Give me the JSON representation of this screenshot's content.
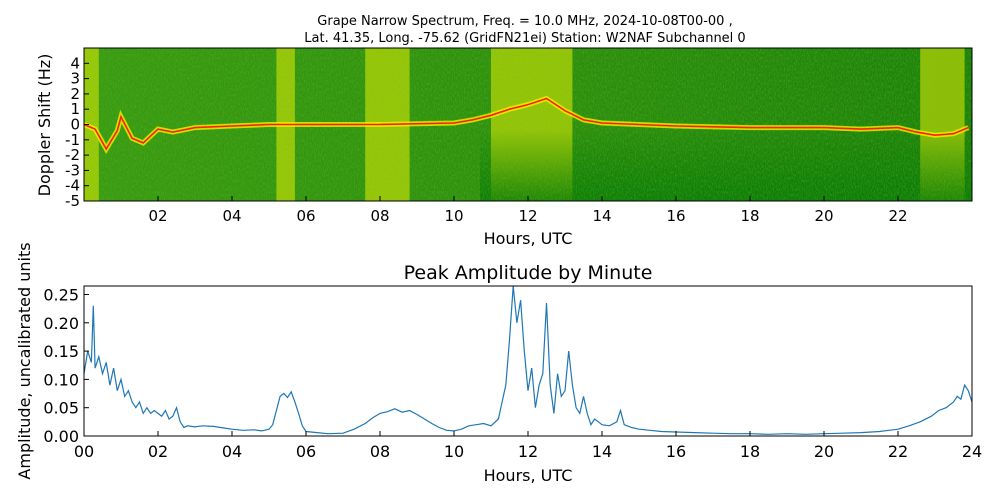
{
  "figure": {
    "spectrogram_title_line1": "Grape Narrow Spectrum, Freq. = 10.0 MHz, 2024-10-08T00-00 ,",
    "spectrogram_title_line2": "Lat.  41.35, Long. -75.62 (GridFN21ei) Station: W2NAF Subchannel 0"
  },
  "chart_data": [
    {
      "type": "heatmap",
      "title": "Grape Narrow Spectrum, Freq. = 10.0 MHz, 2024-10-08T00-00 , Lat.  41.35, Long. -75.62 (GridFN21ei) Station: W2NAF Subchannel 0",
      "xlabel": "Hours, UTC",
      "ylabel": "Doppler Shift (Hz)",
      "xlim": [
        0,
        24
      ],
      "ylim": [
        -5,
        5
      ],
      "x_ticks": [
        2,
        4,
        6,
        8,
        10,
        12,
        14,
        16,
        18,
        20,
        22
      ],
      "x_tick_labels": [
        "02",
        "04",
        "06",
        "08",
        "10",
        "12",
        "14",
        "16",
        "18",
        "20",
        "22"
      ],
      "y_ticks": [
        4,
        3,
        2,
        1,
        0,
        -1,
        -2,
        -3,
        -4,
        -5
      ],
      "y_tick_labels": [
        "4",
        "3",
        "2",
        "1",
        "0",
        "-1",
        "-2",
        "-3",
        "-4",
        "-5"
      ],
      "colors": {
        "background": "#0a7a05",
        "mid": "#9ccf12",
        "high": "#f0f000",
        "peak": "#ff2000"
      },
      "bright_bands_hours": [
        [
          0.0,
          0.4
        ],
        [
          5.2,
          5.7
        ],
        [
          7.6,
          8.8
        ],
        [
          11.0,
          13.2
        ],
        [
          22.6,
          23.8
        ]
      ],
      "trace": {
        "hours": [
          0,
          0.3,
          0.6,
          0.9,
          1.0,
          1.3,
          1.6,
          2.0,
          2.4,
          3.0,
          4.0,
          5.0,
          6.0,
          8.0,
          10.0,
          10.5,
          11.0,
          11.5,
          12.0,
          12.5,
          13.0,
          13.5,
          14.0,
          15.0,
          16.0,
          18.0,
          20.0,
          21.0,
          22.0,
          22.5,
          23.0,
          23.5,
          23.9
        ],
        "doppler_hz": [
          0,
          -0.3,
          -1.6,
          -0.4,
          0.5,
          -0.9,
          -1.2,
          -0.3,
          -0.5,
          -0.2,
          -0.1,
          0,
          0,
          0,
          0.1,
          0.3,
          0.6,
          1.0,
          1.3,
          1.7,
          0.9,
          0.3,
          0.1,
          0,
          -0.1,
          -0.2,
          -0.2,
          -0.3,
          -0.2,
          -0.5,
          -0.7,
          -0.6,
          -0.2
        ]
      }
    },
    {
      "type": "line",
      "title": "Peak Amplitude by Minute",
      "xlabel": "Hours, UTC",
      "ylabel": "Amplitude, uncalibrated units",
      "xlim": [
        0,
        24
      ],
      "ylim": [
        0,
        0.265
      ],
      "x_ticks": [
        0,
        2,
        4,
        6,
        8,
        10,
        12,
        14,
        16,
        18,
        20,
        22,
        24
      ],
      "x_tick_labels": [
        "00",
        "02",
        "04",
        "06",
        "08",
        "10",
        "12",
        "14",
        "16",
        "18",
        "20",
        "22",
        "24"
      ],
      "y_ticks": [
        0,
        0.05,
        0.1,
        0.15,
        0.2,
        0.25
      ],
      "y_tick_labels": [
        "0.00",
        "0.05",
        "0.10",
        "0.15",
        "0.20",
        "0.25"
      ],
      "color": "#1f77b4",
      "series": [
        {
          "x": [
            0,
            0.1,
            0.2,
            0.25,
            0.3,
            0.4,
            0.5,
            0.6,
            0.7,
            0.8,
            0.9,
            1.0,
            1.1,
            1.2,
            1.3,
            1.4,
            1.5,
            1.6,
            1.7,
            1.8,
            1.9,
            2.0,
            2.1,
            2.2,
            2.3,
            2.4,
            2.5,
            2.6,
            2.7,
            2.8,
            3.0,
            3.2,
            3.5,
            3.8,
            4.0,
            4.3,
            4.6,
            4.8,
            5.0,
            5.1,
            5.2,
            5.3,
            5.4,
            5.5,
            5.6,
            5.7,
            5.8,
            5.9,
            6.0,
            6.3,
            6.6,
            7.0,
            7.3,
            7.6,
            7.8,
            8.0,
            8.2,
            8.4,
            8.6,
            8.8,
            9.0,
            9.2,
            9.4,
            9.6,
            9.8,
            10.0,
            10.2,
            10.4,
            10.6,
            10.8,
            11.0,
            11.2,
            11.3,
            11.4,
            11.5,
            11.6,
            11.7,
            11.8,
            11.9,
            12.0,
            12.1,
            12.2,
            12.3,
            12.4,
            12.5,
            12.6,
            12.7,
            12.8,
            12.9,
            13.0,
            13.1,
            13.2,
            13.3,
            13.4,
            13.5,
            13.6,
            13.7,
            13.8,
            13.9,
            14.0,
            14.2,
            14.4,
            14.5,
            14.6,
            14.8,
            15.0,
            15.3,
            15.6,
            16.0,
            16.5,
            17.0,
            17.5,
            18.0,
            18.5,
            19.0,
            19.5,
            20.0,
            20.5,
            21.0,
            21.5,
            22.0,
            22.3,
            22.6,
            22.9,
            23.1,
            23.3,
            23.5,
            23.6,
            23.7,
            23.8,
            23.9,
            24.0
          ],
          "y": [
            0.11,
            0.15,
            0.13,
            0.23,
            0.12,
            0.14,
            0.11,
            0.13,
            0.09,
            0.12,
            0.08,
            0.1,
            0.07,
            0.08,
            0.06,
            0.05,
            0.06,
            0.04,
            0.05,
            0.04,
            0.045,
            0.04,
            0.035,
            0.045,
            0.03,
            0.035,
            0.05,
            0.025,
            0.015,
            0.018,
            0.016,
            0.018,
            0.017,
            0.014,
            0.012,
            0.01,
            0.011,
            0.009,
            0.012,
            0.02,
            0.045,
            0.07,
            0.075,
            0.068,
            0.078,
            0.06,
            0.04,
            0.018,
            0.008,
            0.006,
            0.004,
            0.005,
            0.012,
            0.022,
            0.032,
            0.04,
            0.043,
            0.048,
            0.042,
            0.045,
            0.038,
            0.03,
            0.022,
            0.015,
            0.01,
            0.009,
            0.012,
            0.018,
            0.02,
            0.022,
            0.018,
            0.03,
            0.06,
            0.09,
            0.17,
            0.265,
            0.2,
            0.24,
            0.15,
            0.08,
            0.12,
            0.05,
            0.09,
            0.11,
            0.235,
            0.09,
            0.04,
            0.11,
            0.07,
            0.08,
            0.15,
            0.09,
            0.05,
            0.04,
            0.07,
            0.04,
            0.02,
            0.03,
            0.025,
            0.02,
            0.018,
            0.025,
            0.045,
            0.02,
            0.015,
            0.012,
            0.01,
            0.008,
            0.007,
            0.006,
            0.005,
            0.004,
            0.004,
            0.003,
            0.004,
            0.003,
            0.004,
            0.005,
            0.006,
            0.008,
            0.012,
            0.018,
            0.025,
            0.035,
            0.045,
            0.05,
            0.06,
            0.07,
            0.065,
            0.09,
            0.08,
            0.06
          ]
        }
      ]
    }
  ]
}
